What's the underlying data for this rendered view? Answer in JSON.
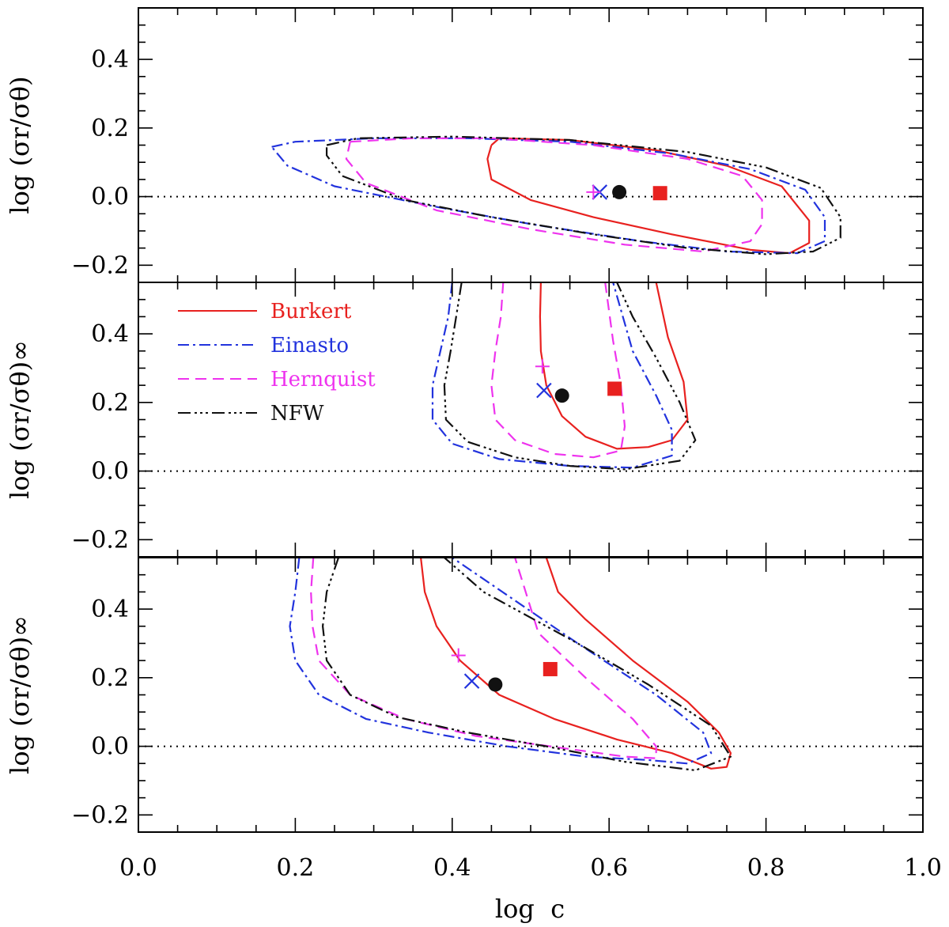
{
  "chart_data": {
    "type": "contour",
    "xlabel": "log  c",
    "xlim": [
      0.0,
      1.0
    ],
    "ylim": [
      -0.25,
      0.55
    ],
    "x_ticks": [
      0.0,
      0.2,
      0.4,
      0.6,
      0.8,
      1.0
    ],
    "x_tick_labels": [
      "0.0",
      "0.2",
      "0.4",
      "0.6",
      "0.8",
      "1.0"
    ],
    "y_ticks": [
      -0.2,
      0.0,
      0.2,
      0.4
    ],
    "y_tick_labels": [
      "−0.2",
      "0.0",
      "0.2",
      "0.4"
    ],
    "reference_line_y": 0.0,
    "legend": [
      {
        "key": "burkert",
        "label": "Burkert"
      },
      {
        "key": "einasto",
        "label": "Einasto"
      },
      {
        "key": "hernquist",
        "label": "Hernquist"
      },
      {
        "key": "nfw",
        "label": "NFW"
      }
    ],
    "colors": {
      "burkert": "#e8211f",
      "einasto": "#2233dd",
      "hernquist": "#ee33ee",
      "nfw": "#111111"
    },
    "panels": [
      {
        "ylabel": "log (σr/σθ)",
        "markers": [
          {
            "model": "burkert",
            "shape": "square",
            "x": 0.665,
            "y": 0.01
          },
          {
            "model": "nfw",
            "shape": "circle",
            "x": 0.613,
            "y": 0.013
          },
          {
            "model": "einasto",
            "shape": "x",
            "x": 0.588,
            "y": 0.013
          },
          {
            "model": "hernquist",
            "shape": "plus",
            "x": 0.58,
            "y": 0.013
          }
        ],
        "contours": {
          "burkert": [
            [
              0.45,
              0.15
            ],
            [
              0.46,
              0.17
            ],
            [
              0.55,
              0.165
            ],
            [
              0.66,
              0.135
            ],
            [
              0.75,
              0.09
            ],
            [
              0.82,
              0.03
            ],
            [
              0.855,
              -0.07
            ],
            [
              0.855,
              -0.135
            ],
            [
              0.83,
              -0.165
            ],
            [
              0.78,
              -0.155
            ],
            [
              0.68,
              -0.11
            ],
            [
              0.58,
              -0.06
            ],
            [
              0.5,
              -0.01
            ],
            [
              0.45,
              0.05
            ],
            [
              0.445,
              0.11
            ],
            [
              0.45,
              0.15
            ]
          ],
          "einasto": [
            [
              0.17,
              0.145
            ],
            [
              0.2,
              0.16
            ],
            [
              0.3,
              0.17
            ],
            [
              0.42,
              0.17
            ],
            [
              0.55,
              0.16
            ],
            [
              0.68,
              0.125
            ],
            [
              0.78,
              0.08
            ],
            [
              0.85,
              0.02
            ],
            [
              0.875,
              -0.06
            ],
            [
              0.875,
              -0.13
            ],
            [
              0.84,
              -0.165
            ],
            [
              0.75,
              -0.16
            ],
            [
              0.64,
              -0.13
            ],
            [
              0.5,
              -0.08
            ],
            [
              0.38,
              -0.03
            ],
            [
              0.25,
              0.03
            ],
            [
              0.19,
              0.09
            ],
            [
              0.17,
              0.145
            ]
          ],
          "hernquist": [
            [
              0.27,
              0.16
            ],
            [
              0.35,
              0.17
            ],
            [
              0.45,
              0.17
            ],
            [
              0.58,
              0.15
            ],
            [
              0.7,
              0.11
            ],
            [
              0.77,
              0.06
            ],
            [
              0.795,
              -0.01
            ],
            [
              0.795,
              -0.08
            ],
            [
              0.78,
              -0.13
            ],
            [
              0.72,
              -0.16
            ],
            [
              0.62,
              -0.14
            ],
            [
              0.5,
              -0.095
            ],
            [
              0.38,
              -0.04
            ],
            [
              0.29,
              0.04
            ],
            [
              0.265,
              0.11
            ],
            [
              0.27,
              0.16
            ]
          ],
          "nfw": [
            [
              0.24,
              0.15
            ],
            [
              0.28,
              0.17
            ],
            [
              0.4,
              0.175
            ],
            [
              0.55,
              0.165
            ],
            [
              0.7,
              0.13
            ],
            [
              0.8,
              0.085
            ],
            [
              0.87,
              0.025
            ],
            [
              0.895,
              -0.06
            ],
            [
              0.895,
              -0.12
            ],
            [
              0.86,
              -0.16
            ],
            [
              0.8,
              -0.168
            ],
            [
              0.7,
              -0.15
            ],
            [
              0.58,
              -0.11
            ],
            [
              0.45,
              -0.06
            ],
            [
              0.34,
              -0.01
            ],
            [
              0.26,
              0.06
            ],
            [
              0.24,
              0.12
            ],
            [
              0.24,
              0.15
            ]
          ]
        }
      },
      {
        "ylabel": "log (σr/σθ)∞",
        "markers": [
          {
            "model": "burkert",
            "shape": "square",
            "x": 0.607,
            "y": 0.24
          },
          {
            "model": "nfw",
            "shape": "circle",
            "x": 0.54,
            "y": 0.22
          },
          {
            "model": "einasto",
            "shape": "x",
            "x": 0.517,
            "y": 0.235
          },
          {
            "model": "hernquist",
            "shape": "plus",
            "x": 0.515,
            "y": 0.305
          }
        ],
        "contours": {
          "burkert": [
            [
              0.513,
              0.55
            ],
            [
              0.512,
              0.45
            ],
            [
              0.513,
              0.35
            ],
            [
              0.52,
              0.25
            ],
            [
              0.54,
              0.16
            ],
            [
              0.57,
              0.1
            ],
            [
              0.61,
              0.065
            ],
            [
              0.65,
              0.07
            ],
            [
              0.68,
              0.09
            ],
            [
              0.7,
              0.15
            ],
            [
              0.695,
              0.26
            ],
            [
              0.675,
              0.39
            ],
            [
              0.66,
              0.55
            ]
          ],
          "einasto": [
            [
              0.4,
              0.55
            ],
            [
              0.395,
              0.45
            ],
            [
              0.385,
              0.35
            ],
            [
              0.375,
              0.25
            ],
            [
              0.375,
              0.15
            ],
            [
              0.4,
              0.08
            ],
            [
              0.46,
              0.035
            ],
            [
              0.55,
              0.015
            ],
            [
              0.63,
              0.01
            ],
            [
              0.68,
              0.045
            ],
            [
              0.68,
              0.12
            ],
            [
              0.66,
              0.22
            ],
            [
              0.63,
              0.35
            ],
            [
              0.605,
              0.55
            ]
          ],
          "hernquist": [
            [
              0.465,
              0.55
            ],
            [
              0.462,
              0.45
            ],
            [
              0.455,
              0.35
            ],
            [
              0.45,
              0.25
            ],
            [
              0.455,
              0.15
            ],
            [
              0.48,
              0.09
            ],
            [
              0.53,
              0.05
            ],
            [
              0.58,
              0.04
            ],
            [
              0.615,
              0.06
            ],
            [
              0.62,
              0.13
            ],
            [
              0.615,
              0.25
            ],
            [
              0.605,
              0.38
            ],
            [
              0.595,
              0.55
            ]
          ],
          "nfw": [
            [
              0.412,
              0.55
            ],
            [
              0.405,
              0.45
            ],
            [
              0.398,
              0.35
            ],
            [
              0.39,
              0.25
            ],
            [
              0.392,
              0.15
            ],
            [
              0.42,
              0.085
            ],
            [
              0.48,
              0.04
            ],
            [
              0.55,
              0.015
            ],
            [
              0.62,
              0.005
            ],
            [
              0.69,
              0.03
            ],
            [
              0.71,
              0.09
            ],
            [
              0.69,
              0.2
            ],
            [
              0.66,
              0.33
            ],
            [
              0.63,
              0.45
            ],
            [
              0.61,
              0.55
            ]
          ]
        }
      },
      {
        "ylabel": "log (σr/σθ)∞",
        "markers": [
          {
            "model": "burkert",
            "shape": "square",
            "x": 0.525,
            "y": 0.225
          },
          {
            "model": "nfw",
            "shape": "circle",
            "x": 0.455,
            "y": 0.18
          },
          {
            "model": "einasto",
            "shape": "x",
            "x": 0.425,
            "y": 0.19
          },
          {
            "model": "hernquist",
            "shape": "plus",
            "x": 0.408,
            "y": 0.265
          }
        ],
        "contours": {
          "burkert": [
            [
              0.36,
              0.55
            ],
            [
              0.365,
              0.45
            ],
            [
              0.38,
              0.35
            ],
            [
              0.41,
              0.25
            ],
            [
              0.46,
              0.15
            ],
            [
              0.53,
              0.08
            ],
            [
              0.61,
              0.02
            ],
            [
              0.68,
              -0.02
            ],
            [
              0.73,
              -0.065
            ],
            [
              0.75,
              -0.06
            ],
            [
              0.755,
              -0.02
            ],
            [
              0.74,
              0.04
            ],
            [
              0.7,
              0.13
            ],
            [
              0.63,
              0.25
            ],
            [
              0.57,
              0.37
            ],
            [
              0.535,
              0.45
            ],
            [
              0.52,
              0.55
            ]
          ],
          "einasto": [
            [
              0.205,
              0.55
            ],
            [
              0.2,
              0.45
            ],
            [
              0.193,
              0.35
            ],
            [
              0.2,
              0.25
            ],
            [
              0.23,
              0.15
            ],
            [
              0.29,
              0.08
            ],
            [
              0.37,
              0.04
            ],
            [
              0.47,
              0.0
            ],
            [
              0.57,
              -0.03
            ],
            [
              0.65,
              -0.04
            ],
            [
              0.7,
              -0.05
            ],
            [
              0.73,
              -0.02
            ],
            [
              0.72,
              0.04
            ],
            [
              0.66,
              0.15
            ],
            [
              0.56,
              0.3
            ],
            [
              0.4,
              0.55
            ]
          ],
          "hernquist": [
            [
              0.223,
              0.55
            ],
            [
              0.22,
              0.45
            ],
            [
              0.222,
              0.35
            ],
            [
              0.23,
              0.25
            ],
            [
              0.27,
              0.15
            ],
            [
              0.34,
              0.08
            ],
            [
              0.43,
              0.03
            ],
            [
              0.54,
              -0.005
            ],
            [
              0.62,
              -0.03
            ],
            [
              0.66,
              -0.035
            ],
            [
              0.66,
              0.0
            ],
            [
              0.63,
              0.08
            ],
            [
              0.57,
              0.2
            ],
            [
              0.51,
              0.33
            ],
            [
              0.48,
              0.55
            ]
          ],
          "nfw": [
            [
              0.255,
              0.55
            ],
            [
              0.24,
              0.45
            ],
            [
              0.235,
              0.35
            ],
            [
              0.24,
              0.25
            ],
            [
              0.27,
              0.15
            ],
            [
              0.33,
              0.085
            ],
            [
              0.42,
              0.04
            ],
            [
              0.52,
              0.0
            ],
            [
              0.62,
              -0.045
            ],
            [
              0.71,
              -0.07
            ],
            [
              0.755,
              -0.03
            ],
            [
              0.73,
              0.06
            ],
            [
              0.65,
              0.18
            ],
            [
              0.56,
              0.3
            ],
            [
              0.44,
              0.45
            ],
            [
              0.39,
              0.55
            ]
          ]
        }
      }
    ]
  }
}
